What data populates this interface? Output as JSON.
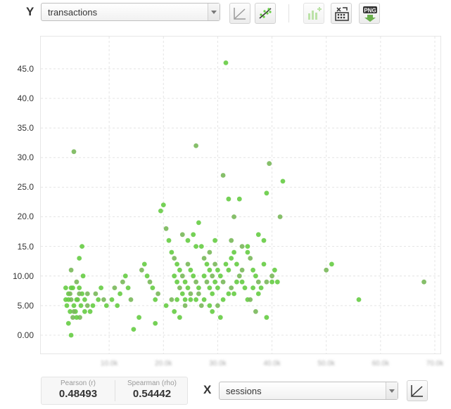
{
  "y_axis": {
    "letter": "Y",
    "field_value": "transactions"
  },
  "x_axis": {
    "letter": "X",
    "field_value": "sessions"
  },
  "toolbar": {
    "icons": [
      "line-chart-icon",
      "scatter-trend-icon",
      "bar-add-icon",
      "shuffle-grid-icon",
      "png-download-icon"
    ],
    "png_label": "PNG"
  },
  "stats": {
    "pearson_label": "Pearson (r)",
    "pearson_value": "0.48493",
    "spearman_label": "Spearman (rho)",
    "spearman_value": "0.54442"
  },
  "chart_data": {
    "type": "scatter",
    "title": "",
    "xlabel": "sessions",
    "ylabel": "transactions",
    "ylim": [
      0,
      47
    ],
    "xlim": [
      0,
      7
    ],
    "grid": true,
    "y_ticks": [
      "0.00",
      "5.00",
      "10.00",
      "15.0",
      "20.0",
      "25.0",
      "30.0",
      "35.0",
      "40.0",
      "45.0"
    ],
    "x_ticks": [
      "10.0k",
      "20.0k",
      "30.0k",
      "40.0k",
      "50.0k",
      "60.0k",
      "70.0k"
    ],
    "point_color": "#66cc44",
    "points": [
      [
        0.35,
        31
      ],
      [
        0.5,
        15
      ],
      [
        0.45,
        13
      ],
      [
        0.3,
        11
      ],
      [
        0.2,
        8
      ],
      [
        0.25,
        7
      ],
      [
        0.3,
        6
      ],
      [
        0.22,
        5
      ],
      [
        0.28,
        4
      ],
      [
        0.33,
        3
      ],
      [
        0.25,
        2
      ],
      [
        0.3,
        0
      ],
      [
        0.4,
        9
      ],
      [
        0.45,
        8
      ],
      [
        0.5,
        7
      ],
      [
        0.42,
        6
      ],
      [
        0.48,
        5
      ],
      [
        0.38,
        4
      ],
      [
        0.46,
        3
      ],
      [
        0.52,
        10
      ],
      [
        0.55,
        6
      ],
      [
        0.6,
        5
      ],
      [
        0.65,
        4
      ],
      [
        0.7,
        5
      ],
      [
        0.75,
        7
      ],
      [
        0.8,
        6
      ],
      [
        0.85,
        8
      ],
      [
        0.9,
        6
      ],
      [
        0.95,
        5
      ],
      [
        1.05,
        6
      ],
      [
        1.1,
        8
      ],
      [
        1.15,
        5
      ],
      [
        1.2,
        7
      ],
      [
        1.25,
        9
      ],
      [
        1.3,
        10
      ],
      [
        1.35,
        8
      ],
      [
        1.4,
        6
      ],
      [
        1.45,
        1
      ],
      [
        1.55,
        3
      ],
      [
        1.6,
        11
      ],
      [
        1.65,
        12
      ],
      [
        1.7,
        10
      ],
      [
        1.75,
        9
      ],
      [
        1.8,
        8
      ],
      [
        1.85,
        6
      ],
      [
        1.9,
        7
      ],
      [
        1.95,
        21
      ],
      [
        2.0,
        22
      ],
      [
        2.05,
        18
      ],
      [
        2.1,
        16
      ],
      [
        2.15,
        14
      ],
      [
        2.2,
        13
      ],
      [
        2.25,
        12
      ],
      [
        2.3,
        11
      ],
      [
        2.35,
        10
      ],
      [
        2.4,
        9
      ],
      [
        2.45,
        8
      ],
      [
        2.5,
        7
      ],
      [
        2.2,
        4
      ],
      [
        2.3,
        3
      ],
      [
        2.4,
        5
      ],
      [
        2.5,
        6
      ],
      [
        2.55,
        17
      ],
      [
        2.6,
        32
      ],
      [
        2.65,
        19
      ],
      [
        2.7,
        15
      ],
      [
        2.75,
        13
      ],
      [
        2.8,
        12
      ],
      [
        2.85,
        11
      ],
      [
        2.9,
        10
      ],
      [
        2.95,
        9
      ],
      [
        3.0,
        8
      ],
      [
        2.7,
        5
      ],
      [
        2.9,
        4
      ],
      [
        3.05,
        3
      ],
      [
        3.1,
        27
      ],
      [
        3.15,
        46
      ],
      [
        3.2,
        23
      ],
      [
        3.25,
        16
      ],
      [
        3.3,
        14
      ],
      [
        3.35,
        12
      ],
      [
        3.4,
        10
      ],
      [
        3.45,
        9
      ],
      [
        3.5,
        8
      ],
      [
        3.3,
        20
      ],
      [
        3.4,
        23
      ],
      [
        3.55,
        14
      ],
      [
        3.6,
        13
      ],
      [
        3.65,
        11
      ],
      [
        3.7,
        10
      ],
      [
        3.75,
        9
      ],
      [
        3.8,
        8
      ],
      [
        3.55,
        6
      ],
      [
        3.7,
        4
      ],
      [
        3.85,
        12
      ],
      [
        3.9,
        24
      ],
      [
        3.95,
        29
      ],
      [
        3.85,
        16
      ],
      [
        3.75,
        17
      ],
      [
        4.0,
        10
      ],
      [
        4.05,
        11
      ],
      [
        4.1,
        9
      ],
      [
        4.15,
        20
      ],
      [
        4.2,
        26
      ],
      [
        3.9,
        3
      ],
      [
        5.0,
        11
      ],
      [
        5.1,
        12
      ],
      [
        5.6,
        6
      ],
      [
        6.8,
        9
      ],
      [
        2.2,
        10
      ],
      [
        2.25,
        9
      ],
      [
        2.3,
        8
      ],
      [
        2.35,
        7
      ],
      [
        2.4,
        6
      ],
      [
        2.45,
        12
      ],
      [
        2.5,
        11
      ],
      [
        2.55,
        10
      ],
      [
        2.6,
        9
      ],
      [
        2.65,
        8
      ],
      [
        2.75,
        10
      ],
      [
        2.8,
        9
      ],
      [
        2.85,
        8
      ],
      [
        2.9,
        7
      ],
      [
        2.95,
        12
      ],
      [
        3.0,
        11
      ],
      [
        3.05,
        10
      ],
      [
        3.1,
        9
      ],
      [
        3.15,
        12
      ],
      [
        3.2,
        11
      ],
      [
        3.25,
        8
      ],
      [
        3.3,
        7
      ],
      [
        3.35,
        9
      ],
      [
        3.45,
        11
      ],
      [
        0.35,
        5
      ],
      [
        0.4,
        6
      ],
      [
        0.45,
        7
      ],
      [
        0.3,
        8
      ],
      [
        0.25,
        6
      ],
      [
        0.35,
        4
      ],
      [
        0.4,
        3
      ],
      [
        0.2,
        6
      ],
      [
        0.28,
        7
      ],
      [
        0.33,
        8
      ],
      [
        0.55,
        4
      ],
      [
        0.6,
        7
      ],
      [
        1.85,
        2
      ],
      [
        2.05,
        5
      ],
      [
        2.15,
        6
      ],
      [
        2.25,
        6
      ],
      [
        2.6,
        6
      ],
      [
        2.65,
        7
      ],
      [
        2.75,
        6
      ],
      [
        2.85,
        5
      ],
      [
        3.0,
        5
      ],
      [
        3.1,
        6
      ],
      [
        3.2,
        7
      ],
      [
        3.6,
        6
      ],
      [
        3.65,
        8
      ],
      [
        3.75,
        7
      ],
      [
        3.9,
        9
      ],
      [
        4.0,
        9
      ],
      [
        3.55,
        15
      ],
      [
        3.45,
        15
      ],
      [
        3.25,
        13
      ],
      [
        2.95,
        16
      ],
      [
        2.85,
        14
      ],
      [
        2.6,
        15
      ],
      [
        2.45,
        16
      ],
      [
        2.35,
        17
      ]
    ]
  }
}
